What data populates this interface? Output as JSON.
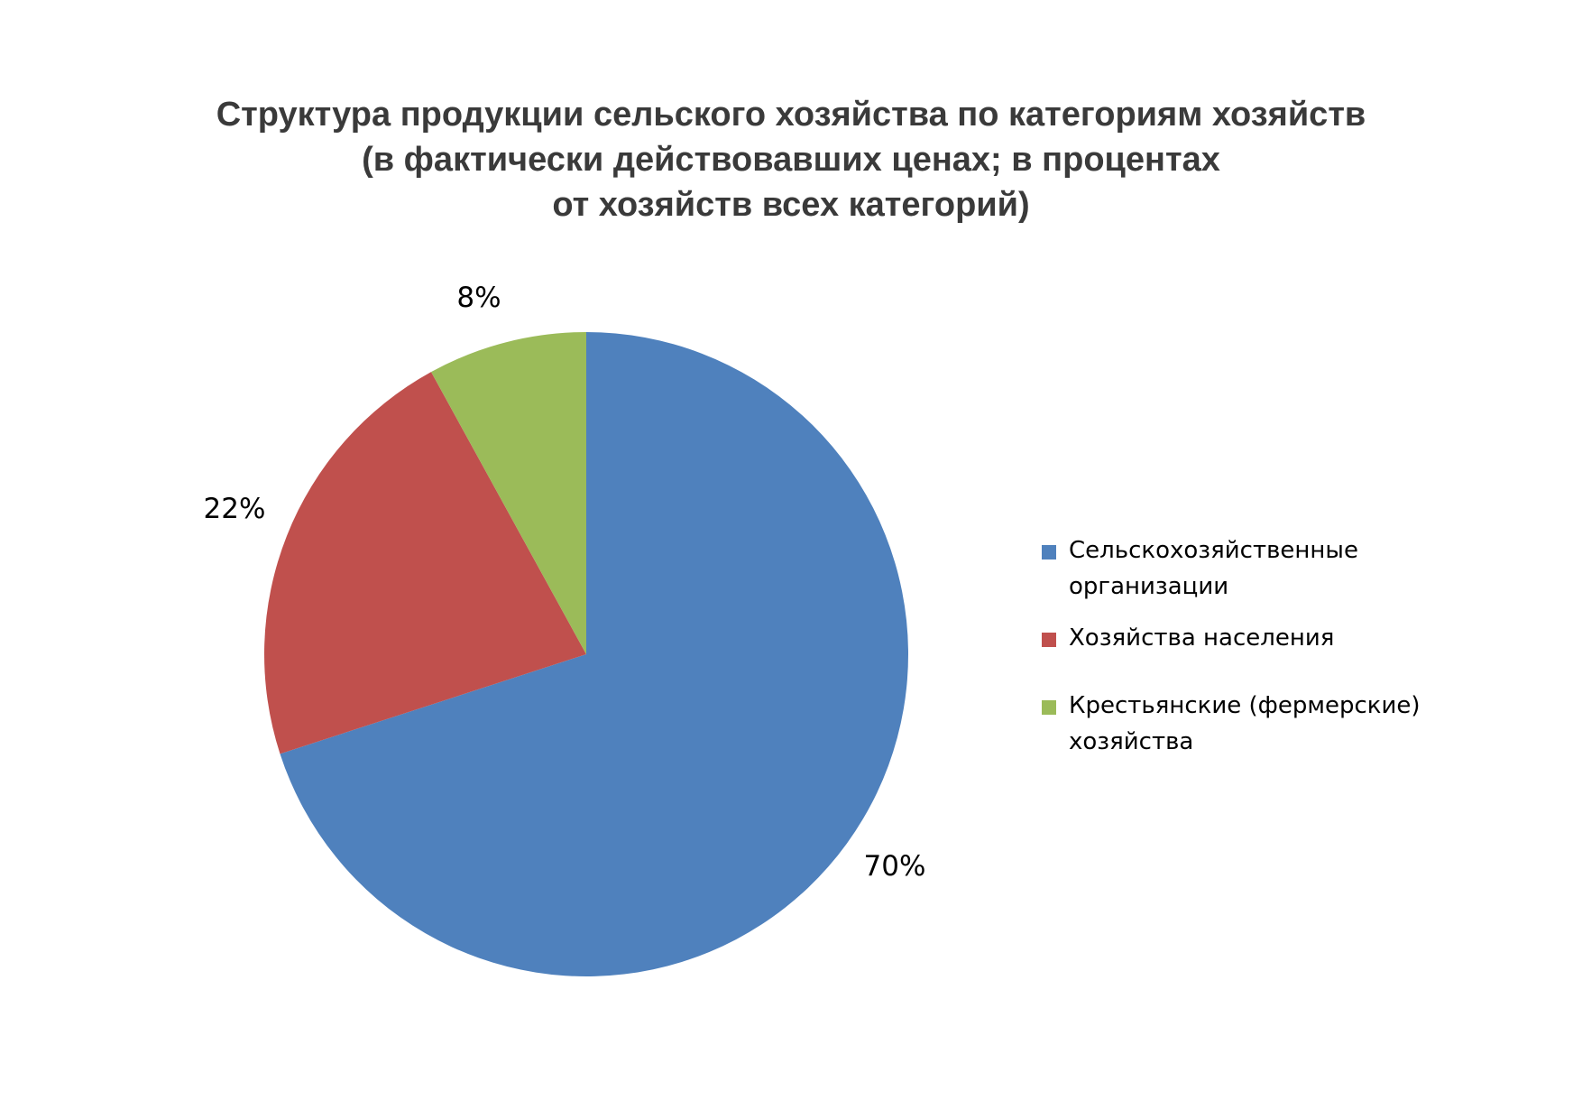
{
  "chart_data": {
    "type": "pie",
    "title": [
      "Структура продукции сельского хозяйства по категориям хозяйств",
      "(в фактически действовавших ценах; в процентах",
      "от хозяйств всех категорий)"
    ],
    "slices": [
      {
        "name": "Сельскохозяйственные организации",
        "value": 70,
        "label": "70%",
        "color": "#4f81bd"
      },
      {
        "name": "Хозяйства населения",
        "value": 22,
        "label": "22%",
        "color": "#c0504d"
      },
      {
        "name": "Крестьянские (фермерские) хозяйства",
        "value": 8,
        "label": "8%",
        "color": "#9bbb59"
      }
    ],
    "legend": [
      [
        "Сельскохозяйственные",
        "организации"
      ],
      [
        "Хозяйства населения"
      ],
      [
        "Крестьянские (фермерские)",
        "хозяйства"
      ]
    ],
    "legend_position": "right",
    "start": "top",
    "direction": "clockwise"
  }
}
